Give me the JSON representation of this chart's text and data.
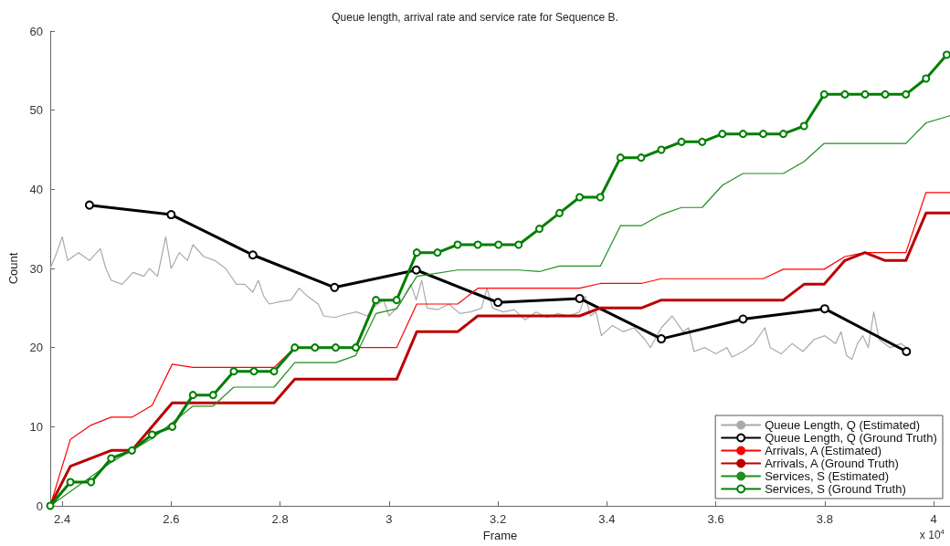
{
  "chart_data": {
    "type": "line",
    "title": "Queue length, arrival rate and service rate for Sequence B.",
    "xlabel": "Frame",
    "ylabel": "Count",
    "annotations": [
      "x 10$^{4}$"
    ],
    "xlim": [
      2.378,
      4.03
    ],
    "xticks": [
      2.4,
      2.6,
      2.8,
      3,
      3.2,
      3.4,
      3.6,
      3.8,
      4
    ],
    "ylim": [
      0,
      60
    ],
    "yticks": [
      0,
      10,
      20,
      30,
      40,
      50,
      60
    ],
    "grid": false,
    "legend": "bottom right",
    "marker": "none",
    "line_style": "solid",
    "series": [
      {
        "name": "Queue Length, Q (Estimated)",
        "color": "#aaaaaa",
        "x": [
          2.378,
          2.39,
          2.4,
          2.41,
          2.43,
          2.45,
          2.47,
          2.48,
          2.49,
          2.51,
          2.53,
          2.55,
          2.56,
          2.575,
          2.59,
          2.6,
          2.615,
          2.63,
          2.64,
          2.66,
          2.68,
          2.7,
          2.72,
          2.735,
          2.75,
          2.76,
          2.77,
          2.78,
          2.8,
          2.82,
          2.835,
          2.85,
          2.87,
          2.88,
          2.9,
          2.92,
          2.94,
          2.96,
          2.97,
          2.99,
          3.0,
          3.02,
          3.04,
          3.05,
          3.06,
          3.07,
          3.09,
          3.11,
          3.13,
          3.15,
          3.17,
          3.18,
          3.19,
          3.21,
          3.23,
          3.25,
          3.27,
          3.29,
          3.31,
          3.33,
          3.35,
          3.36,
          3.37,
          3.38,
          3.39,
          3.41,
          3.43,
          3.45,
          3.47,
          3.48,
          3.5,
          3.52,
          3.54,
          3.55,
          3.56,
          3.58,
          3.6,
          3.62,
          3.63,
          3.65,
          3.67,
          3.69,
          3.7,
          3.72,
          3.74,
          3.76,
          3.78,
          3.8,
          3.82,
          3.83,
          3.84,
          3.85,
          3.86,
          3.87,
          3.88,
          3.89,
          3.9,
          3.92,
          3.94,
          3.95
        ],
        "values": [
          30,
          32,
          34,
          31,
          32,
          31,
          32.5,
          30,
          28.5,
          28,
          29.5,
          29,
          30,
          29,
          34,
          30,
          32,
          31,
          33,
          31.5,
          31,
          30,
          28,
          28,
          27,
          28.5,
          26.5,
          25.5,
          25.8,
          26,
          27.5,
          26.5,
          25.5,
          24,
          23.8,
          24.2,
          24.5,
          24,
          25,
          26,
          24,
          25.5,
          28,
          26,
          28.5,
          25,
          24.8,
          25.5,
          24.3,
          24.5,
          25,
          27.5,
          25,
          24.5,
          24.8,
          23.5,
          24.5,
          23.8,
          24.3,
          24,
          24.5,
          26.5,
          24,
          24.5,
          21.5,
          22.8,
          22,
          22.5,
          21,
          20,
          22.5,
          24,
          22,
          22.5,
          19.5,
          20,
          19.2,
          20,
          18.8,
          19.5,
          20.5,
          22.5,
          20,
          19.2,
          20.5,
          19.5,
          21,
          21.5,
          20.5,
          22,
          19,
          18.5,
          20.5,
          21.5,
          20,
          24.5,
          21,
          20,
          20.5,
          20
        ]
      },
      {
        "name": "Queue Length, Q (Ground Truth)",
        "color": "#000000",
        "marker": "circle",
        "x": [
          2.45,
          2.6,
          2.75,
          2.9,
          3.05,
          3.2,
          3.35,
          3.5,
          3.65,
          3.8,
          3.95
        ],
        "values": [
          38,
          36.8,
          31.7,
          27.6,
          29.8,
          25.7,
          26.2,
          21.1,
          23.6,
          24.9,
          19.5
        ]
      },
      {
        "name": "Arrivals, A (Estimated)",
        "color": "#ff0000",
        "x": [
          2.378,
          2.415,
          2.453,
          2.49,
          2.528,
          2.565,
          2.602,
          2.64,
          2.789,
          2.827,
          3.014,
          3.051,
          3.126,
          3.163,
          3.35,
          3.388,
          3.463,
          3.5,
          3.687,
          3.724,
          3.799,
          3.837,
          3.874,
          3.949,
          3.986,
          4.03
        ],
        "values": [
          0,
          8.4,
          10.2,
          11.2,
          11.2,
          12.7,
          17.9,
          17.5,
          17.5,
          20,
          20,
          25.5,
          25.5,
          27.5,
          27.5,
          28.1,
          28.1,
          28.7,
          28.7,
          29.9,
          29.9,
          31.5,
          32,
          32,
          39.6,
          39.6
        ]
      },
      {
        "name": "Arrivals, A (Ground Truth)",
        "color": "#bb0000",
        "x": [
          2.378,
          2.415,
          2.49,
          2.528,
          2.602,
          2.789,
          2.827,
          3.014,
          3.051,
          3.126,
          3.163,
          3.35,
          3.388,
          3.463,
          3.5,
          3.724,
          3.762,
          3.799,
          3.837,
          3.874,
          3.911,
          3.949,
          3.986,
          4.03
        ],
        "values": [
          0,
          5,
          7,
          7,
          13,
          13,
          16,
          16,
          22,
          22,
          24,
          24,
          25,
          25,
          26,
          26,
          28,
          28,
          31,
          32,
          31,
          31,
          37,
          37
        ]
      },
      {
        "name": "Services, S (Estimated)",
        "color": "#1f8f1f",
        "x": [
          2.378,
          2.49,
          2.528,
          2.565,
          2.602,
          2.64,
          2.677,
          2.715,
          2.789,
          2.827,
          2.902,
          2.939,
          2.976,
          3.014,
          3.051,
          3.126,
          3.238,
          3.276,
          3.313,
          3.388,
          3.425,
          3.463,
          3.5,
          3.537,
          3.575,
          3.612,
          3.65,
          3.724,
          3.762,
          3.799,
          3.949,
          3.986,
          4.03
        ],
        "values": [
          0,
          5.5,
          7,
          8.5,
          10.5,
          12.6,
          12.6,
          15,
          15,
          18.1,
          18.1,
          19,
          24.3,
          24.9,
          29,
          29.8,
          29.8,
          29.6,
          30.3,
          30.3,
          35.4,
          35.4,
          36.8,
          37.7,
          37.7,
          40.5,
          42,
          42,
          43.5,
          45.8,
          45.8,
          48.4,
          49.3
        ]
      },
      {
        "name": "Services, S (Ground Truth)",
        "color": "#007f00",
        "marker": "circle",
        "x": [
          2.378,
          2.415,
          2.453,
          2.49,
          2.528,
          2.565,
          2.602,
          2.64,
          2.677,
          2.715,
          2.752,
          2.789,
          2.827,
          2.864,
          2.902,
          2.939,
          2.976,
          3.014,
          3.051,
          3.089,
          3.126,
          3.163,
          3.201,
          3.238,
          3.276,
          3.313,
          3.35,
          3.388,
          3.425,
          3.463,
          3.5,
          3.537,
          3.575,
          3.612,
          3.65,
          3.687,
          3.724,
          3.762,
          3.799,
          3.837,
          3.874,
          3.911,
          3.949,
          3.986,
          4.024
        ],
        "values": [
          0,
          3,
          3,
          6,
          7,
          9,
          10,
          14,
          14,
          17,
          17,
          17,
          20,
          20,
          20,
          20,
          26,
          26,
          32,
          32,
          33,
          33,
          33,
          33,
          35,
          37,
          39,
          39,
          44,
          44,
          45,
          46,
          46,
          47,
          47,
          47,
          47,
          48,
          52,
          52,
          52,
          52,
          52,
          54,
          57
        ]
      }
    ]
  }
}
